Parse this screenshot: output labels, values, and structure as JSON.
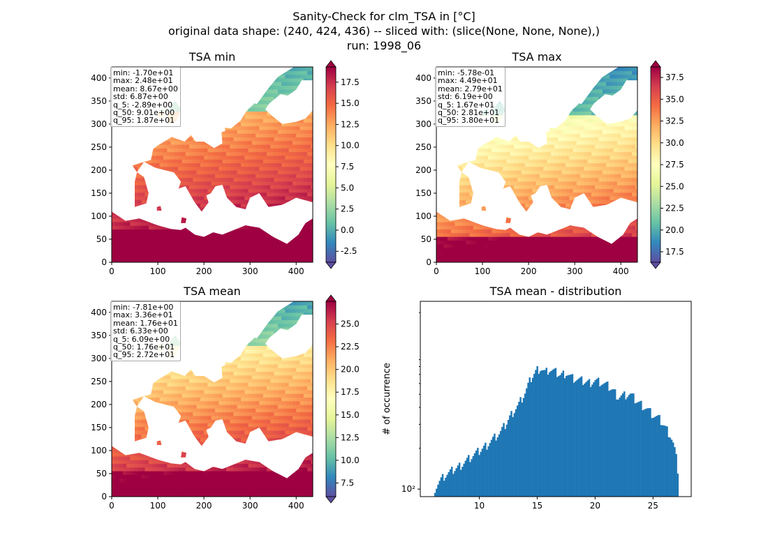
{
  "figure": {
    "title_line1": "Sanity-Check for clm_TSA in [°C]",
    "title_line2": "original data shape: (240, 424, 436) -- sliced with: (slice(None, None, None),)",
    "title_line3": "run: 1998_06"
  },
  "chart_data": [
    {
      "type": "heatmap",
      "title": "TSA min",
      "colormap": "Spectral_r",
      "x_ticks": [
        0,
        100,
        200,
        300,
        400
      ],
      "y_ticks": [
        0,
        50,
        100,
        150,
        200,
        250,
        300,
        350,
        400
      ],
      "xlim": [
        0,
        436
      ],
      "ylim": [
        0,
        424
      ],
      "colorbar_ticks": [
        "-2.5",
        "0.0",
        "2.5",
        "5.0",
        "7.5",
        "10.0",
        "12.5",
        "15.0",
        "17.5"
      ],
      "colorbar_range": [
        -3.8,
        19.3
      ],
      "colorbar_extend": "both",
      "stats": {
        "min": "min: -1.70e+01",
        "max": "max: 2.48e+01",
        "mean": "mean: 8.67e+00",
        "std": "std: 6.87e+00",
        "q_5": "q_5: -2.89e+00",
        "q_50": "q_50: 9.01e+00",
        "q_95": "q_95: 1.87e+01"
      }
    },
    {
      "type": "heatmap",
      "title": "TSA max",
      "colormap": "Spectral_r",
      "x_ticks": [
        0,
        100,
        200,
        300,
        400
      ],
      "y_ticks": [
        0,
        50,
        100,
        150,
        200,
        250,
        300,
        350,
        400
      ],
      "xlim": [
        0,
        436
      ],
      "ylim": [
        0,
        424
      ],
      "colorbar_ticks": [
        "17.5",
        "20.0",
        "22.5",
        "25.0",
        "27.5",
        "30.0",
        "32.5",
        "35.0",
        "37.5"
      ],
      "colorbar_range": [
        16.3,
        38.7
      ],
      "colorbar_extend": "both",
      "stats": {
        "min": "min: -5.78e-01",
        "max": "max: 4.49e+01",
        "mean": "mean: 2.79e+01",
        "std": "std: 6.19e+00",
        "q_5": "q_5: 1.67e+01",
        "q_50": "q_50: 2.81e+01",
        "q_95": "q_95: 3.80e+01"
      }
    },
    {
      "type": "heatmap",
      "title": "TSA mean",
      "colormap": "Spectral_r",
      "x_ticks": [
        0,
        100,
        200,
        300,
        400
      ],
      "y_ticks": [
        0,
        50,
        100,
        150,
        200,
        250,
        300,
        350,
        400
      ],
      "xlim": [
        0,
        436
      ],
      "ylim": [
        0,
        424
      ],
      "colorbar_ticks": [
        "7.5",
        "10.0",
        "12.5",
        "15.0",
        "17.5",
        "20.0",
        "22.5",
        "25.0"
      ],
      "colorbar_range": [
        6.0,
        27.5
      ],
      "colorbar_extend": "both",
      "stats": {
        "min": "min: -7.81e+00",
        "max": "max: 3.36e+01",
        "mean": "mean: 1.76e+01",
        "std": "std: 6.33e+00",
        "q_5": "q_5: 6.09e+00",
        "q_50": "q_50: 1.76e+01",
        "q_95": "q_95: 2.72e+01"
      }
    },
    {
      "type": "bar",
      "title": "TSA mean - distribution",
      "ylabel": "# of occurrence",
      "xlabel": "",
      "yscale": "log",
      "bar_color": "#1f77b4",
      "x_ticks": [
        10,
        15,
        20,
        25
      ],
      "y_tick_label": "10²",
      "xlim": [
        4.9,
        28.3
      ],
      "ylim": [
        88,
        2420
      ],
      "bin_range": [
        6.1,
        27.2
      ],
      "bin_count": 160,
      "envelope_x": [
        6.1,
        6.6,
        7.0,
        7.6,
        8.3,
        9.0,
        9.6,
        10.0,
        10.6,
        11.2,
        11.8,
        12.3,
        12.8,
        13.4,
        14.0,
        14.5,
        15.0,
        15.3,
        15.7,
        16.0,
        16.5,
        17.0,
        17.5,
        18.0,
        18.5,
        19.0,
        19.5,
        20.0,
        20.5,
        21.0,
        21.5,
        22.0,
        22.5,
        23.0,
        23.5,
        24.0,
        24.5,
        25.0,
        25.5,
        26.0,
        26.5,
        26.8,
        27.0,
        27.2
      ],
      "envelope_y": [
        100,
        115,
        125,
        135,
        148,
        165,
        180,
        190,
        210,
        235,
        260,
        300,
        360,
        420,
        520,
        660,
        760,
        780,
        720,
        760,
        730,
        690,
        720,
        660,
        640,
        620,
        610,
        630,
        610,
        580,
        540,
        480,
        490,
        500,
        450,
        420,
        390,
        350,
        330,
        290,
        250,
        210,
        170,
        125
      ]
    }
  ]
}
